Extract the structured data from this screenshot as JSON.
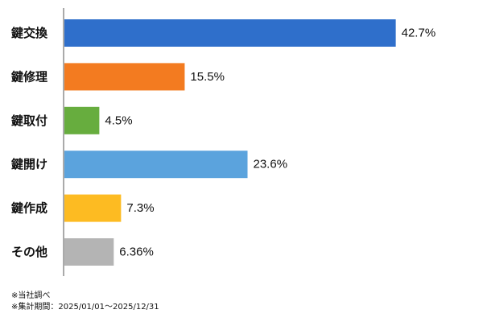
{
  "chart_data": {
    "type": "bar",
    "orientation": "horizontal",
    "categories": [
      "鍵交換",
      "鍵修理",
      "鍵取付",
      "鍵開け",
      "鍵作成",
      "その他"
    ],
    "values": [
      42.7,
      15.5,
      4.5,
      23.6,
      7.3,
      6.36
    ],
    "value_labels": [
      "42.7%",
      "15.5%",
      "4.5%",
      "23.6%",
      "7.3%",
      "6.36%"
    ],
    "colors": [
      "#2f6fcb",
      "#f37b20",
      "#67ad3e",
      "#5ba3dd",
      "#fdbb22",
      "#b4b4b4"
    ],
    "xlim": [
      0,
      50
    ],
    "grid": false,
    "legend": "none"
  },
  "notes": [
    "※当社調べ",
    "※集計期間：2025/01/01〜2025/12/31"
  ]
}
